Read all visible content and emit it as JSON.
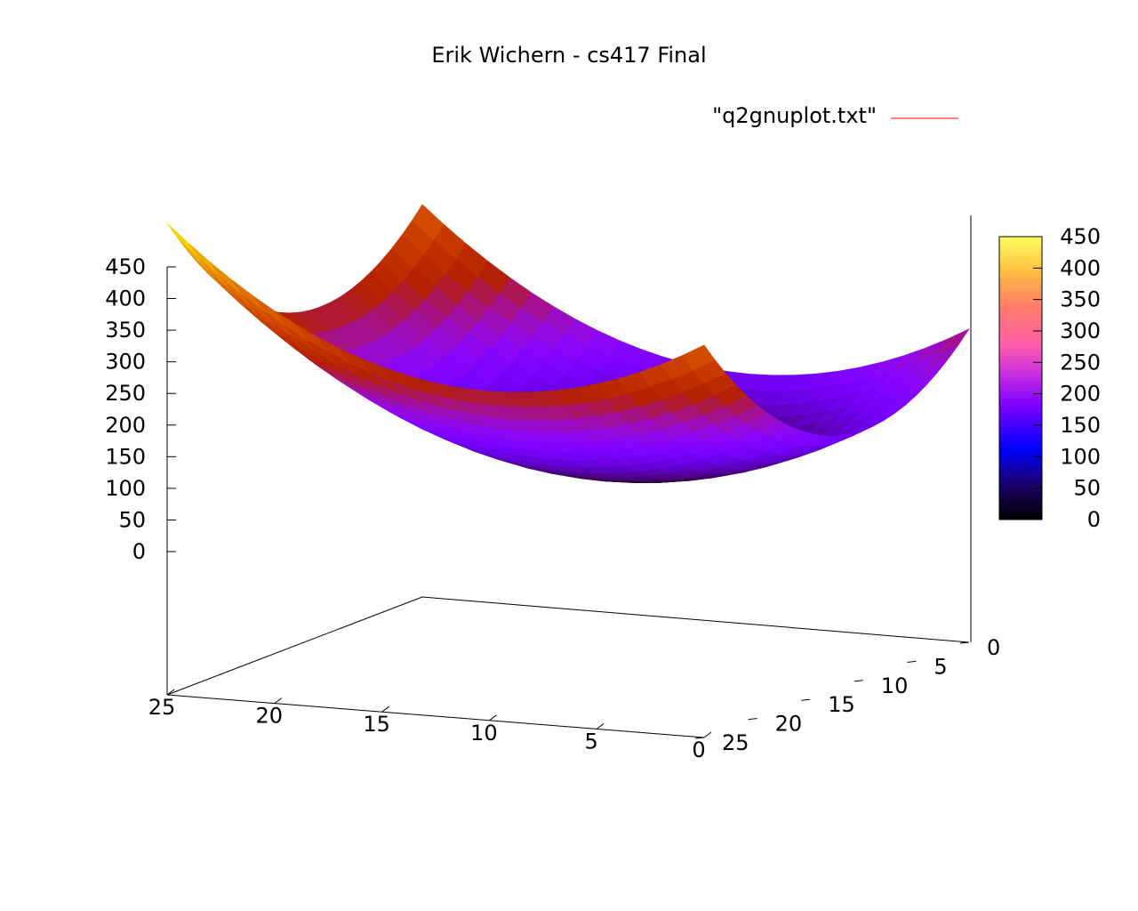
{
  "chart_data": {
    "type": "surface3d",
    "title": "Erik Wichern - cs417 Final",
    "legend": {
      "label": "\"q2gnuplot.txt\"",
      "color": "#ff0000",
      "placement": "top-right"
    },
    "x": {
      "ticks": [
        0,
        5,
        10,
        15,
        20,
        25
      ],
      "range": [
        0,
        25
      ]
    },
    "y": {
      "ticks": [
        0,
        5,
        10,
        15,
        20,
        25
      ],
      "range": [
        0,
        25
      ]
    },
    "z": {
      "ticks": [
        0,
        50,
        100,
        150,
        200,
        250,
        300,
        350,
        400,
        450
      ],
      "range": [
        0,
        450
      ]
    },
    "colorbar": {
      "ticks": [
        0,
        50,
        100,
        150,
        200,
        250,
        300,
        350,
        400,
        450
      ],
      "palette": "black-blue-purple-red-yellow (gnuplot pm3d default)"
    },
    "surface": {
      "description": "paraboloid bowl z = (x-10)^2 + (y-10)^2 over 0..25",
      "center_x": 10,
      "center_y": 10,
      "max_value": 450,
      "corner_values": {
        "x0_y0": 200,
        "x25_y0": 325,
        "x0_y25": 325,
        "x25_y25": 450
      }
    }
  }
}
